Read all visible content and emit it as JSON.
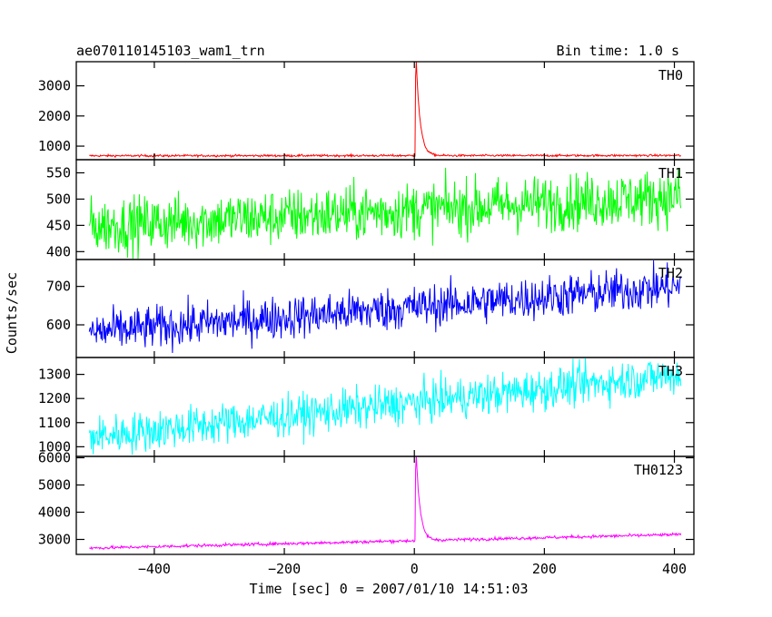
{
  "header": {
    "observation": "ae070110145103_wam1_trn",
    "bin_time": "Bin time: 1.0 s"
  },
  "chart_data": [
    {
      "type": "line",
      "panel": "TH0",
      "label": "TH0",
      "color": "#ff0000",
      "xlim": [
        -520,
        430
      ],
      "ylim": [
        550,
        3800
      ],
      "yticks": [
        1000,
        2000,
        3000
      ],
      "ytick_labels": [
        "1000",
        "2000",
        "3000"
      ],
      "baseline": {
        "start": 680,
        "end": 690
      },
      "noise": 25,
      "peak": {
        "time": 3,
        "value": 3800,
        "decay_s": 6
      }
    },
    {
      "type": "line",
      "panel": "TH1",
      "label": "TH1",
      "color": "#00ff00",
      "xlim": [
        -520,
        430
      ],
      "ylim": [
        385,
        575
      ],
      "yticks": [
        400,
        450,
        500,
        550
      ],
      "ytick_labels": [
        "400",
        "450",
        "500",
        "550"
      ],
      "baseline": {
        "start": 448,
        "end": 505
      },
      "noise": 38,
      "peak": null
    },
    {
      "type": "line",
      "panel": "TH2",
      "label": "TH2",
      "color": "#0000ff",
      "xlim": [
        -520,
        430
      ],
      "ylim": [
        515,
        770
      ],
      "yticks": [
        600,
        700
      ],
      "ytick_labels": [
        "600",
        "700"
      ],
      "baseline": {
        "start": 580,
        "end": 700
      },
      "noise": 40,
      "peak": null
    },
    {
      "type": "line",
      "panel": "TH3",
      "label": "TH3",
      "color": "#00ffff",
      "xlim": [
        -520,
        430
      ],
      "ylim": [
        960,
        1370
      ],
      "yticks": [
        1000,
        1100,
        1200,
        1300
      ],
      "ytick_labels": [
        "1000",
        "1100",
        "1200",
        "1300"
      ],
      "baseline": {
        "start": 1040,
        "end": 1300
      },
      "noise": 60,
      "peak": null
    },
    {
      "type": "line",
      "panel": "TH0123",
      "label": "TH0123",
      "color": "#ff00ff",
      "xlim": [
        -520,
        430
      ],
      "ylim": [
        2450,
        6050
      ],
      "yticks": [
        3000,
        4000,
        5000,
        6000
      ],
      "ytick_labels": [
        "3000",
        "4000",
        "5000",
        "6000"
      ],
      "baseline": {
        "start": 2680,
        "end": 3180
      },
      "noise": 40,
      "peak": {
        "time": 3,
        "value": 6050,
        "decay_s": 6
      }
    }
  ],
  "x_axis": {
    "ticks": [
      -400,
      -200,
      0,
      200,
      400
    ],
    "tick_labels": [
      "−400",
      "−200",
      "0",
      "200",
      "400"
    ],
    "label": "Time [sec] 0 = 2007/01/10 14:51:03",
    "range": [
      -500,
      410
    ]
  },
  "y_axis": {
    "label": "Counts/sec"
  }
}
